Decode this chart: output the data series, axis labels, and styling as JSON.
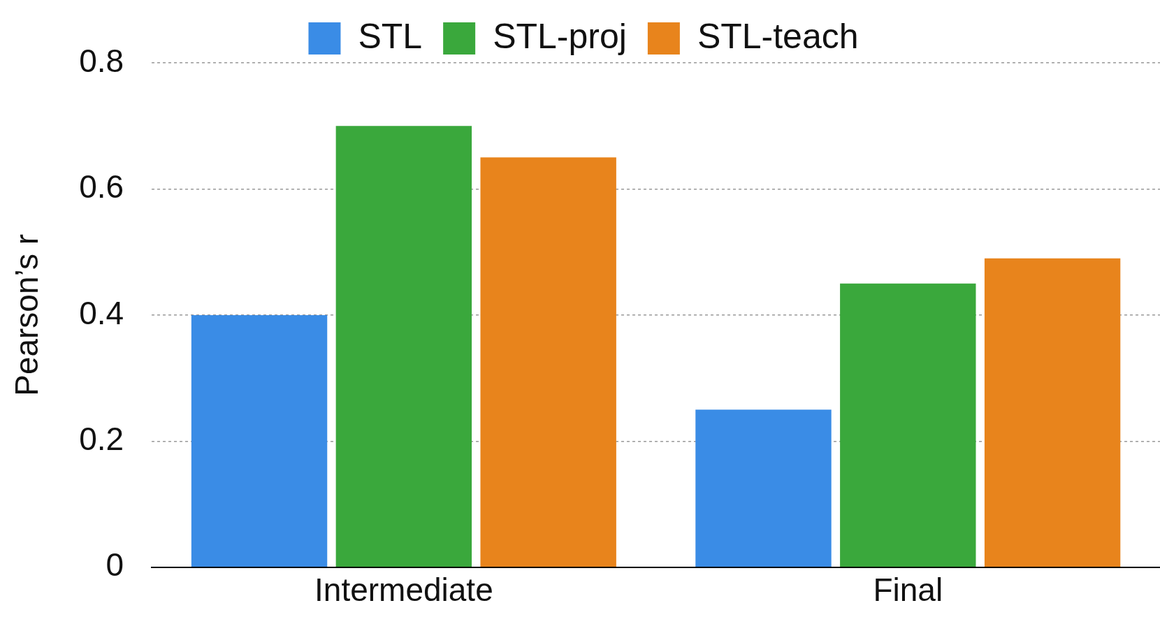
{
  "chart_data": {
    "type": "bar",
    "ylabel": "Pearson’s r",
    "categories": [
      "Intermediate",
      "Final"
    ],
    "series": [
      {
        "name": "STL",
        "color": "#3a8ce6",
        "values": [
          0.4,
          0.25
        ]
      },
      {
        "name": "STL-proj",
        "color": "#3aa83c",
        "values": [
          0.7,
          0.45
        ]
      },
      {
        "name": "STL-teach",
        "color": "#e8841c",
        "values": [
          0.65,
          0.49
        ]
      }
    ],
    "ylim": [
      0,
      0.8
    ],
    "yticks": [
      0,
      0.2,
      0.4,
      0.6,
      0.8
    ],
    "grid": "y",
    "legend": "top"
  }
}
